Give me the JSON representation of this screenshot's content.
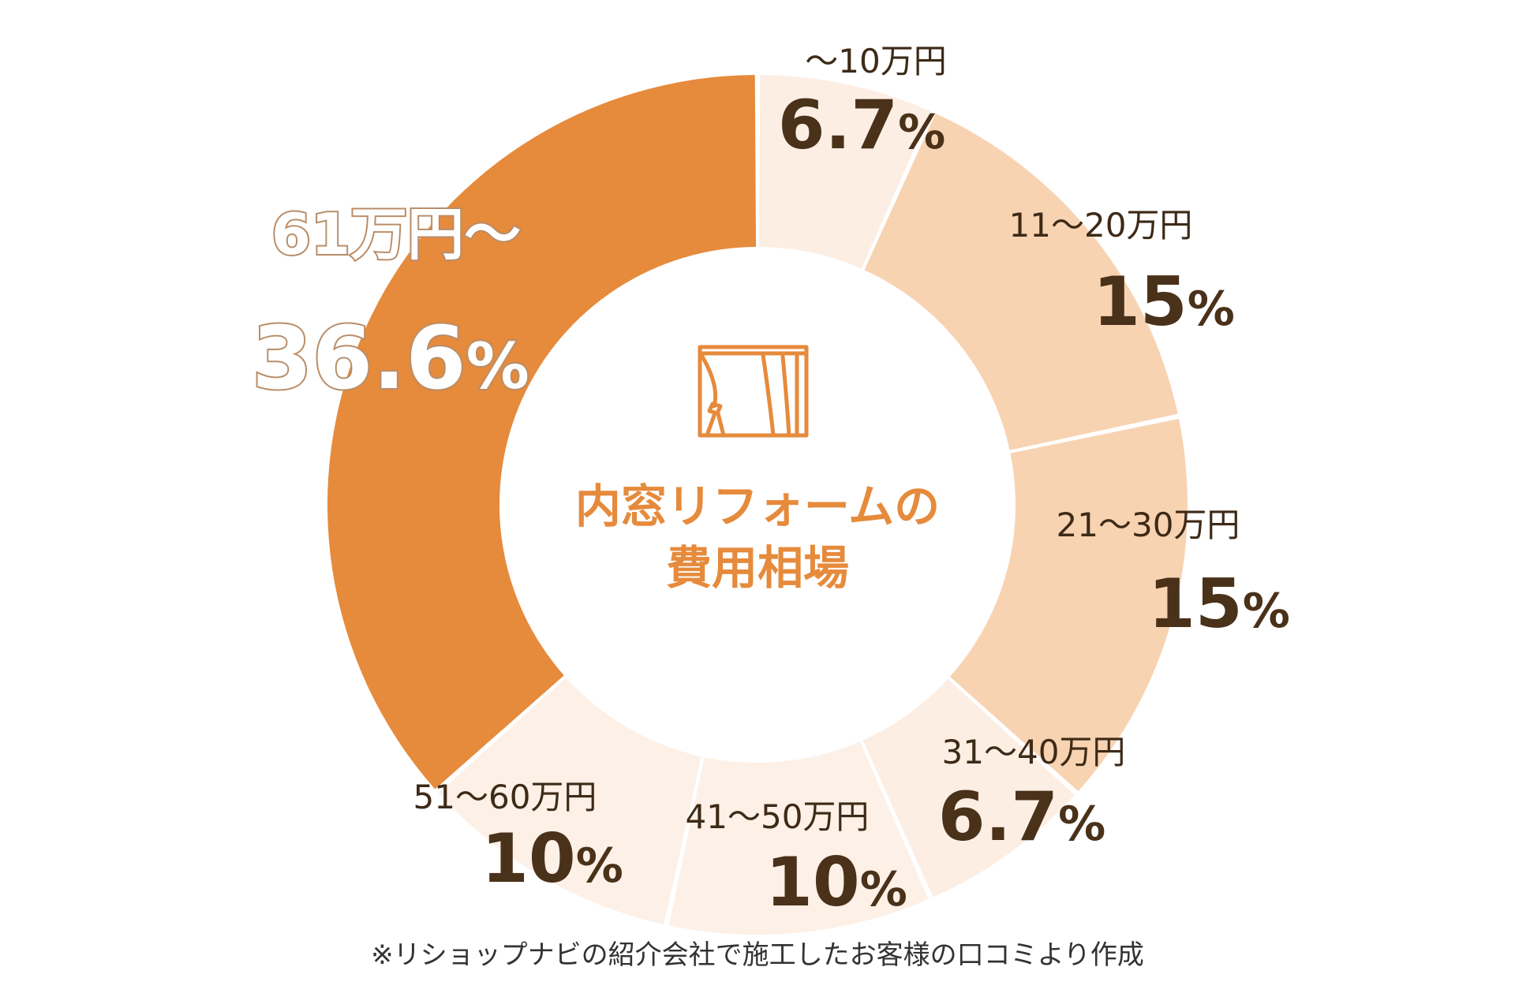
{
  "chart_data": {
    "type": "pie",
    "title_lines": [
      "内窓リフォームの",
      "費用相場"
    ],
    "footnote": "※リショップナビの紹介会社で施工したお客様の口コミより作成",
    "slices": [
      {
        "label": "～10万円",
        "value": 6.7,
        "display": "6.7",
        "color": "#fdeee4"
      },
      {
        "label": "11～20万円",
        "value": 15,
        "display": "15",
        "color": "#f8d3b2"
      },
      {
        "label": "21～30万円",
        "value": 15,
        "display": "15",
        "color": "#f8d3b2"
      },
      {
        "label": "31～40万円",
        "value": 6.7,
        "display": "6.7",
        "color": "#fdeee4"
      },
      {
        "label": "41～50万円",
        "value": 10,
        "display": "10",
        "color": "#fdf0e6"
      },
      {
        "label": "51～60万円",
        "value": 10,
        "display": "10",
        "color": "#fdf0e6"
      },
      {
        "label": "61万円～",
        "value": 36.6,
        "display": "36.6",
        "color": "#e68a3c"
      }
    ],
    "unit": "%",
    "icon": "curtain-window-icon"
  }
}
